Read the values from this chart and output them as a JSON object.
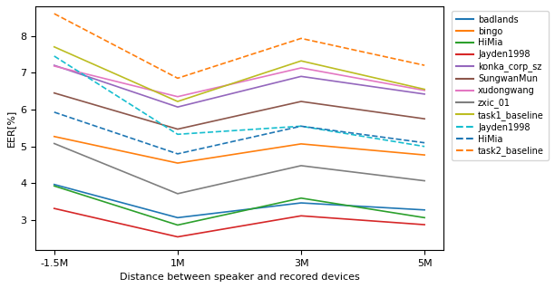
{
  "x_labels": [
    "-1.5M",
    "1M",
    "3M",
    "5M"
  ],
  "x_values": [
    0,
    1,
    2,
    3
  ],
  "series": [
    {
      "name": "badlands",
      "color": "#1f77b4",
      "linestyle": "-",
      "values": [
        3.97,
        3.07,
        3.47,
        3.28
      ]
    },
    {
      "name": "bingo",
      "color": "#ff7f0e",
      "linestyle": "-",
      "values": [
        5.27,
        4.55,
        5.07,
        4.77
      ]
    },
    {
      "name": "HiMia",
      "color": "#2ca02c",
      "linestyle": "-",
      "values": [
        3.93,
        2.87,
        3.6,
        3.07
      ]
    },
    {
      "name": "Jayden1998",
      "color": "#d62728",
      "linestyle": "-",
      "values": [
        3.32,
        2.55,
        3.12,
        2.88
      ]
    },
    {
      "name": "konka_corp_sz",
      "color": "#9467bd",
      "linestyle": "-",
      "values": [
        7.2,
        6.07,
        6.9,
        6.42
      ]
    },
    {
      "name": "SungwanMun",
      "color": "#8c564b",
      "linestyle": "-",
      "values": [
        6.45,
        5.47,
        6.22,
        5.75
      ]
    },
    {
      "name": "xudongwang",
      "color": "#e377c2",
      "linestyle": "-",
      "values": [
        7.18,
        6.35,
        7.13,
        6.52
      ]
    },
    {
      "name": "zxic_01",
      "color": "#7f7f7f",
      "linestyle": "-",
      "values": [
        5.08,
        3.72,
        4.48,
        4.07
      ]
    },
    {
      "name": "task1_baseline",
      "color": "#bcbd22",
      "linestyle": "-",
      "values": [
        7.7,
        6.22,
        7.32,
        6.55
      ]
    },
    {
      "name": "Jayden1998",
      "color": "#17becf",
      "linestyle": "--",
      "values": [
        7.45,
        5.33,
        5.55,
        5.0
      ]
    },
    {
      "name": "HiMia",
      "color": "#1f77b4",
      "linestyle": "--",
      "values": [
        5.93,
        4.8,
        5.55,
        5.1
      ]
    },
    {
      "name": "task2_baseline",
      "color": "#ff7f0e",
      "linestyle": "--",
      "values": [
        8.6,
        6.85,
        7.93,
        7.2
      ]
    }
  ],
  "ylabel": "EER[%]",
  "xlabel": "Distance between speaker and recored devices",
  "ylim": [
    2.2,
    8.8
  ],
  "yticks": [
    3,
    4,
    5,
    6,
    7,
    8
  ],
  "figsize": [
    6.12,
    3.18
  ],
  "dpi": 100
}
